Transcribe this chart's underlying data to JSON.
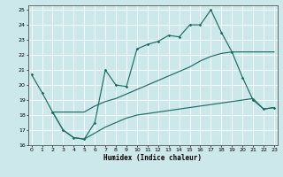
{
  "xlabel": "Humidex (Indice chaleur)",
  "xlim": [
    0,
    23
  ],
  "ylim": [
    16,
    25.3
  ],
  "yticks": [
    16,
    17,
    18,
    19,
    20,
    21,
    22,
    23,
    24,
    25
  ],
  "xticks": [
    0,
    1,
    2,
    3,
    4,
    5,
    6,
    7,
    8,
    9,
    10,
    11,
    12,
    13,
    14,
    15,
    16,
    17,
    18,
    19,
    20,
    21,
    22,
    23
  ],
  "bg_color": "#cde8eb",
  "grid_color": "#b8d8da",
  "line_color": "#1a6e62",
  "line1_x": [
    0,
    1,
    2,
    3,
    4,
    5,
    6,
    7,
    8,
    9,
    10,
    11,
    12,
    13,
    14,
    15,
    16,
    17,
    18,
    19,
    20,
    21,
    22,
    23
  ],
  "line1_y": [
    20.7,
    19.5,
    18.2,
    17.0,
    16.5,
    16.4,
    17.5,
    21.0,
    20.0,
    19.9,
    22.4,
    22.7,
    22.9,
    23.3,
    23.2,
    24.0,
    24.0,
    25.0,
    23.5,
    22.2,
    20.5,
    19.0,
    18.4,
    18.5
  ],
  "line2_x": [
    2,
    3,
    4,
    5,
    6,
    7,
    8,
    9,
    10,
    11,
    12,
    13,
    14,
    15,
    16,
    17,
    18,
    19,
    20,
    21,
    22,
    23
  ],
  "line2_y": [
    18.2,
    18.2,
    18.2,
    18.2,
    18.6,
    18.9,
    19.1,
    19.4,
    19.7,
    20.0,
    20.3,
    20.6,
    20.9,
    21.2,
    21.6,
    21.9,
    22.1,
    22.2,
    22.2,
    22.2,
    22.2,
    22.2
  ],
  "line3_x": [
    2,
    3,
    4,
    5,
    6,
    7,
    8,
    9,
    10,
    11,
    12,
    13,
    14,
    15,
    16,
    17,
    18,
    19,
    20,
    21,
    22,
    23
  ],
  "line3_y": [
    18.2,
    17.0,
    16.5,
    16.4,
    16.8,
    17.2,
    17.5,
    17.8,
    18.0,
    18.1,
    18.2,
    18.3,
    18.4,
    18.5,
    18.6,
    18.7,
    18.8,
    18.9,
    19.0,
    19.1,
    18.4,
    18.5
  ],
  "marker_style": "D",
  "marker_size": 1.8
}
